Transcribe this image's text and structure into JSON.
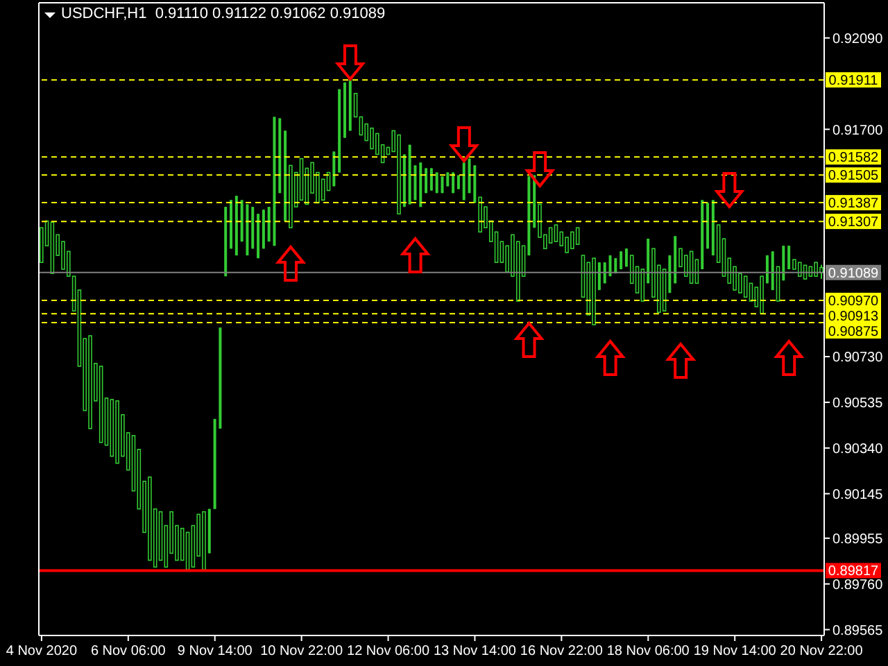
{
  "chart_data": {
    "type": "candlestick",
    "title": "USDCHF,H1  0.91110 0.91122 0.91062 0.91089",
    "color": "#33cc33",
    "categories": [
      "4 Nov 2020",
      null,
      null,
      null,
      null,
      null,
      null,
      null,
      null,
      null,
      null,
      null,
      null,
      null,
      null,
      null,
      "6 Nov 06:00",
      null,
      null,
      null,
      null,
      null,
      null,
      null,
      null,
      null,
      null,
      null,
      null,
      null,
      null,
      null,
      "9 Nov 14:00",
      null,
      null,
      null,
      null,
      null,
      null,
      null,
      null,
      null,
      null,
      null,
      null,
      null,
      null,
      null,
      "10 Nov 22:00",
      null,
      null,
      null,
      null,
      null,
      null,
      null,
      null,
      null,
      null,
      null,
      null,
      null,
      null,
      null,
      "12 Nov 06:00",
      null,
      null,
      null,
      null,
      null,
      null,
      null,
      null,
      null,
      null,
      null,
      null,
      null,
      null,
      null,
      "13 Nov 14:00",
      null,
      null,
      null,
      null,
      null,
      null,
      null,
      null,
      null,
      null,
      null,
      null,
      null,
      null,
      null,
      "16 Nov 22:00",
      null,
      null,
      null,
      null,
      null,
      null,
      null,
      null,
      null,
      null,
      null,
      null,
      null,
      null,
      null,
      "18 Nov 06:00",
      null,
      null,
      null,
      null,
      null,
      null,
      null,
      null,
      null,
      null,
      null,
      null,
      null,
      null,
      null,
      "19 Nov 14:00",
      null,
      null,
      null,
      null,
      null,
      null,
      null,
      null,
      null,
      null,
      null,
      null,
      null,
      null,
      null,
      "20 Nov 22:00"
    ],
    "ohlc": [
      [
        0.9128,
        0.9128,
        0.91132,
        0.91132
      ],
      [
        0.91309,
        0.91309,
        0.91203,
        0.91203
      ],
      [
        0.91304,
        0.91304,
        0.91085,
        0.91085
      ],
      [
        0.9125,
        0.9125,
        0.91162,
        0.91162
      ],
      [
        0.91221,
        0.91221,
        0.91103,
        0.91103
      ],
      [
        0.91179,
        0.91179,
        0.91073,
        0.91073
      ],
      [
        0.91073,
        0.91073,
        0.90925,
        0.90925
      ],
      [
        0.91014,
        0.91014,
        0.90689,
        0.90689
      ],
      [
        0.90807,
        0.90807,
        0.905,
        0.905
      ],
      [
        0.90819,
        0.90819,
        0.90423,
        0.90423
      ],
      [
        0.90701,
        0.90701,
        0.90541,
        0.90541
      ],
      [
        0.90689,
        0.90689,
        0.90364,
        0.90364
      ],
      [
        0.90553,
        0.90553,
        0.90352,
        0.90352
      ],
      [
        0.90547,
        0.90547,
        0.90305,
        0.90305
      ],
      [
        0.90541,
        0.90541,
        0.90275,
        0.90275
      ],
      [
        0.90482,
        0.90482,
        0.90305,
        0.90305
      ],
      [
        0.90405,
        0.90405,
        0.90246,
        0.90246
      ],
      [
        0.90393,
        0.90393,
        0.90157,
        0.90157
      ],
      [
        0.90334,
        0.90334,
        0.9008,
        0.9008
      ],
      [
        0.90198,
        0.90198,
        0.8998,
        0.8998
      ],
      [
        0.90216,
        0.90216,
        0.89861,
        0.89861
      ],
      [
        0.9008,
        0.9008,
        0.89832,
        0.89832
      ],
      [
        0.90068,
        0.90068,
        0.89861,
        0.89861
      ],
      [
        0.90009,
        0.90009,
        0.89832,
        0.89832
      ],
      [
        0.90068,
        0.90068,
        0.89891,
        0.89891
      ],
      [
        0.90009,
        0.90009,
        0.89861,
        0.89861
      ],
      [
        0.89997,
        0.89997,
        0.89861,
        0.89861
      ],
      [
        0.8998,
        0.8998,
        0.8982,
        0.8982
      ],
      [
        0.90009,
        0.90009,
        0.89832,
        0.89832
      ],
      [
        0.90057,
        0.90057,
        0.89879,
        0.89879
      ],
      [
        0.90068,
        0.90068,
        0.8982,
        0.8982
      ],
      [
        0.89891,
        0.9008,
        0.89891,
        0.9008
      ],
      [
        0.9008,
        0.90464,
        0.9008,
        0.90464
      ],
      [
        0.90423,
        0.90854,
        0.90423,
        0.90854
      ],
      [
        0.91073,
        0.91369,
        0.91073,
        0.91369
      ],
      [
        0.91191,
        0.91398,
        0.91191,
        0.91398
      ],
      [
        0.91162,
        0.91416,
        0.91162,
        0.91416
      ],
      [
        0.91221,
        0.91398,
        0.91221,
        0.91398
      ],
      [
        0.91162,
        0.9138,
        0.91162,
        0.9138
      ],
      [
        0.91191,
        0.91369,
        0.91191,
        0.91369
      ],
      [
        0.9115,
        0.91339,
        0.9115,
        0.91339
      ],
      [
        0.91191,
        0.91357,
        0.91191,
        0.91357
      ],
      [
        0.91221,
        0.91369,
        0.91221,
        0.91369
      ],
      [
        0.91203,
        0.91753,
        0.91203,
        0.91753
      ],
      [
        0.91428,
        0.91747,
        0.91428,
        0.91747
      ],
      [
        0.91309,
        0.91694,
        0.91309,
        0.91694
      ],
      [
        0.91546,
        0.91546,
        0.9128,
        0.9128
      ],
      [
        0.91516,
        0.91516,
        0.91369,
        0.91369
      ],
      [
        0.91575,
        0.91575,
        0.91398,
        0.91398
      ],
      [
        0.91534,
        0.91534,
        0.9138,
        0.9138
      ],
      [
        0.91558,
        0.91558,
        0.91428,
        0.91428
      ],
      [
        0.91516,
        0.91516,
        0.91386,
        0.91386
      ],
      [
        0.91487,
        0.91487,
        0.91398,
        0.91398
      ],
      [
        0.91516,
        0.91516,
        0.91439,
        0.91439
      ],
      [
        0.91457,
        0.91605,
        0.91457,
        0.91605
      ],
      [
        0.91516,
        0.91871,
        0.91516,
        0.91871
      ],
      [
        0.91664,
        0.919,
        0.91664,
        0.919
      ],
      [
        0.91694,
        0.91912,
        0.91694,
        0.91912
      ],
      [
        0.91853,
        0.91853,
        0.91753,
        0.91753
      ],
      [
        0.91753,
        0.91753,
        0.91676,
        0.91676
      ],
      [
        0.91723,
        0.91723,
        0.91652,
        0.91652
      ],
      [
        0.91705,
        0.91705,
        0.91617,
        0.91617
      ],
      [
        0.91682,
        0.91682,
        0.91593,
        0.91593
      ],
      [
        0.91634,
        0.91634,
        0.91558,
        0.91558
      ],
      [
        0.91623,
        0.91623,
        0.91593,
        0.91593
      ],
      [
        0.91694,
        0.91694,
        0.91605,
        0.91605
      ],
      [
        0.91676,
        0.91676,
        0.91339,
        0.91339
      ],
      [
        0.91369,
        0.91593,
        0.91369,
        0.91593
      ],
      [
        0.9138,
        0.91634,
        0.9138,
        0.91634
      ],
      [
        0.91398,
        0.91546,
        0.91398,
        0.91546
      ],
      [
        0.91369,
        0.91558,
        0.91369,
        0.91558
      ],
      [
        0.91428,
        0.91534,
        0.91428,
        0.91534
      ],
      [
        0.91439,
        0.91534,
        0.91439,
        0.91534
      ],
      [
        0.91428,
        0.91516,
        0.91428,
        0.91516
      ],
      [
        0.91428,
        0.91499,
        0.91428,
        0.91499
      ],
      [
        0.91457,
        0.91516,
        0.91457,
        0.91516
      ],
      [
        0.91428,
        0.91516,
        0.91428,
        0.91516
      ],
      [
        0.91445,
        0.91504,
        0.91445,
        0.91504
      ],
      [
        0.91398,
        0.91558,
        0.91398,
        0.91558
      ],
      [
        0.91428,
        0.91575,
        0.91428,
        0.91575
      ],
      [
        0.91386,
        0.91546,
        0.91386,
        0.91546
      ],
      [
        0.9141,
        0.9141,
        0.91262,
        0.91262
      ],
      [
        0.91369,
        0.91369,
        0.9128,
        0.9128
      ],
      [
        0.91309,
        0.91309,
        0.91221,
        0.91221
      ],
      [
        0.91262,
        0.91262,
        0.91132,
        0.91132
      ],
      [
        0.91221,
        0.91221,
        0.91132,
        0.91132
      ],
      [
        0.91203,
        0.91203,
        0.91091,
        0.91091
      ],
      [
        0.9125,
        0.9125,
        0.91073,
        0.91073
      ],
      [
        0.91221,
        0.91221,
        0.90967,
        0.90967
      ],
      [
        0.91203,
        0.91203,
        0.91073,
        0.91073
      ],
      [
        0.91162,
        0.91499,
        0.91162,
        0.91499
      ],
      [
        0.9128,
        0.91504,
        0.9128,
        0.91504
      ],
      [
        0.9138,
        0.9138,
        0.91239,
        0.91239
      ],
      [
        0.9125,
        0.9125,
        0.91191,
        0.91191
      ],
      [
        0.9128,
        0.9128,
        0.91215,
        0.91215
      ],
      [
        0.91292,
        0.91292,
        0.91221,
        0.91221
      ],
      [
        0.91262,
        0.91262,
        0.91203,
        0.91203
      ],
      [
        0.91239,
        0.91239,
        0.91174,
        0.91174
      ],
      [
        0.91262,
        0.91262,
        0.91191,
        0.91191
      ],
      [
        0.9128,
        0.9128,
        0.91209,
        0.91209
      ],
      [
        0.91162,
        0.91162,
        0.90984,
        0.90984
      ],
      [
        0.91132,
        0.91132,
        0.90908,
        0.90908
      ],
      [
        0.9115,
        0.9115,
        0.90866,
        0.90866
      ],
      [
        0.91014,
        0.91132,
        0.91014,
        0.91132
      ],
      [
        0.91043,
        0.91132,
        0.91043,
        0.91132
      ],
      [
        0.91073,
        0.91162,
        0.91073,
        0.91162
      ],
      [
        0.91085,
        0.9115,
        0.91085,
        0.9115
      ],
      [
        0.91103,
        0.91179,
        0.91103,
        0.91179
      ],
      [
        0.91114,
        0.91191,
        0.91114,
        0.91191
      ],
      [
        0.91162,
        0.91162,
        0.91043,
        0.91043
      ],
      [
        0.91114,
        0.91114,
        0.91002,
        0.91002
      ],
      [
        0.91103,
        0.91103,
        0.90967,
        0.90967
      ],
      [
        0.91043,
        0.91233,
        0.91043,
        0.91233
      ],
      [
        0.91191,
        0.91191,
        0.90984,
        0.90984
      ],
      [
        0.9112,
        0.9112,
        0.90919,
        0.90919
      ],
      [
        0.91103,
        0.91103,
        0.90925,
        0.90925
      ],
      [
        0.91002,
        0.91162,
        0.91002,
        0.91162
      ],
      [
        0.91043,
        0.91244,
        0.91043,
        0.91244
      ],
      [
        0.91191,
        0.91191,
        0.91114,
        0.91114
      ],
      [
        0.91162,
        0.91162,
        0.91073,
        0.91073
      ],
      [
        0.91179,
        0.91179,
        0.91043,
        0.91043
      ],
      [
        0.91144,
        0.91144,
        0.91043,
        0.91043
      ],
      [
        0.91103,
        0.91398,
        0.91103,
        0.91398
      ],
      [
        0.91191,
        0.91386,
        0.91191,
        0.91386
      ],
      [
        0.91162,
        0.91398,
        0.91162,
        0.91398
      ],
      [
        0.91292,
        0.91292,
        0.91132,
        0.91132
      ],
      [
        0.91233,
        0.91233,
        0.91073,
        0.91073
      ],
      [
        0.9115,
        0.9115,
        0.91043,
        0.91043
      ],
      [
        0.91114,
        0.91114,
        0.91014,
        0.91014
      ],
      [
        0.91085,
        0.91085,
        0.91002,
        0.91002
      ],
      [
        0.91073,
        0.91073,
        0.90984,
        0.90984
      ],
      [
        0.91043,
        0.91043,
        0.90967,
        0.90967
      ],
      [
        0.91026,
        0.91026,
        0.90943,
        0.90943
      ],
      [
        0.91073,
        0.91073,
        0.90913,
        0.90913
      ],
      [
        0.91043,
        0.91162,
        0.91043,
        0.91162
      ],
      [
        0.91014,
        0.91179,
        0.91014,
        0.91179
      ],
      [
        0.91114,
        0.91114,
        0.90967,
        0.90967
      ],
      [
        0.91055,
        0.91203,
        0.91055,
        0.91203
      ],
      [
        0.91103,
        0.91203,
        0.91103,
        0.91203
      ],
      [
        0.91144,
        0.91144,
        0.91103,
        0.91103
      ],
      [
        0.91132,
        0.91132,
        0.91073,
        0.91073
      ],
      [
        0.9112,
        0.9112,
        0.91061,
        0.91061
      ],
      [
        0.91114,
        0.91114,
        0.91073,
        0.91073
      ],
      [
        0.91132,
        0.91132,
        0.91073,
        0.91073
      ],
      [
        0.9111,
        0.91122,
        0.91062,
        0.91089
      ]
    ],
    "ylim": [
      0.8954,
      0.9224
    ],
    "yticks": [
      {
        "value": 0.9209,
        "label": "0.92090"
      },
      {
        "value": 0.917,
        "label": "0.91700"
      },
      {
        "value": 0.9073,
        "label": "0.90730"
      },
      {
        "value": 0.90535,
        "label": "0.90535"
      },
      {
        "value": 0.9034,
        "label": "0.90340"
      },
      {
        "value": 0.90145,
        "label": "0.90145"
      },
      {
        "value": 0.89955,
        "label": "0.89955"
      },
      {
        "value": 0.8976,
        "label": "0.89760"
      },
      {
        "value": 0.89565,
        "label": "0.89565"
      }
    ],
    "ref_lines": [
      {
        "axis": "y",
        "value": 0.91911,
        "label": "0.91911",
        "color": "#ffff00",
        "line_style": "dashed"
      },
      {
        "axis": "y",
        "value": 0.91582,
        "label": "0.91582",
        "color": "#ffff00",
        "line_style": "dashed"
      },
      {
        "axis": "y",
        "value": 0.91505,
        "label": "0.91505",
        "color": "#ffff00",
        "line_style": "dashed"
      },
      {
        "axis": "y",
        "value": 0.91387,
        "label": "0.91387",
        "color": "#ffff00",
        "line_style": "dashed"
      },
      {
        "axis": "y",
        "value": 0.91307,
        "label": "0.91307",
        "color": "#ffff00",
        "line_style": "dashed"
      },
      {
        "axis": "y",
        "value": 0.91089,
        "label": "0.91089",
        "color": "#808080",
        "line_style": "solid"
      },
      {
        "axis": "y",
        "value": 0.9097,
        "label": "0.90970",
        "color": "#ffff00",
        "line_style": "dashed"
      },
      {
        "axis": "y",
        "value": 0.90913,
        "label": "0.90913",
        "color": "#ffff00",
        "line_style": "dashed"
      },
      {
        "axis": "y",
        "value": 0.90875,
        "label": "0.90875",
        "color": "#ffff00",
        "line_style": "dashed"
      },
      {
        "axis": "y",
        "value": 0.89817,
        "label": "0.89817",
        "color": "#ff0000",
        "line_style": "solid"
      }
    ]
  }
}
